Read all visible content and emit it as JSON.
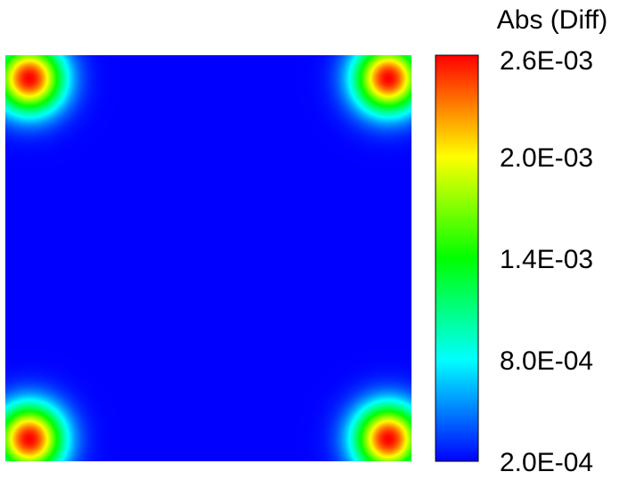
{
  "chart_data": {
    "type": "heatmap",
    "colorbar": {
      "title": "Abs (Diff)",
      "min": 0.0002,
      "max": 0.0026,
      "tick_values": [
        0.0026,
        0.002,
        0.0014,
        0.0008,
        0.0002
      ],
      "tick_labels": [
        "2.6E-03",
        "2.0E-03",
        "1.4E-03",
        "8.0E-04",
        "2.0E-04"
      ],
      "colormap": [
        "#0000ff",
        "#00ffff",
        "#00ff00",
        "#ffff00",
        "#ff0000"
      ]
    },
    "field": {
      "background_value": 0.0002,
      "hotspots": [
        {
          "location": "top-left",
          "peak": 0.0026
        },
        {
          "location": "top-right",
          "peak": 0.0026
        },
        {
          "location": "bottom-left",
          "peak": 0.0026
        },
        {
          "location": "bottom-right",
          "peak": 0.0026
        }
      ]
    },
    "legend_placement": "right"
  }
}
